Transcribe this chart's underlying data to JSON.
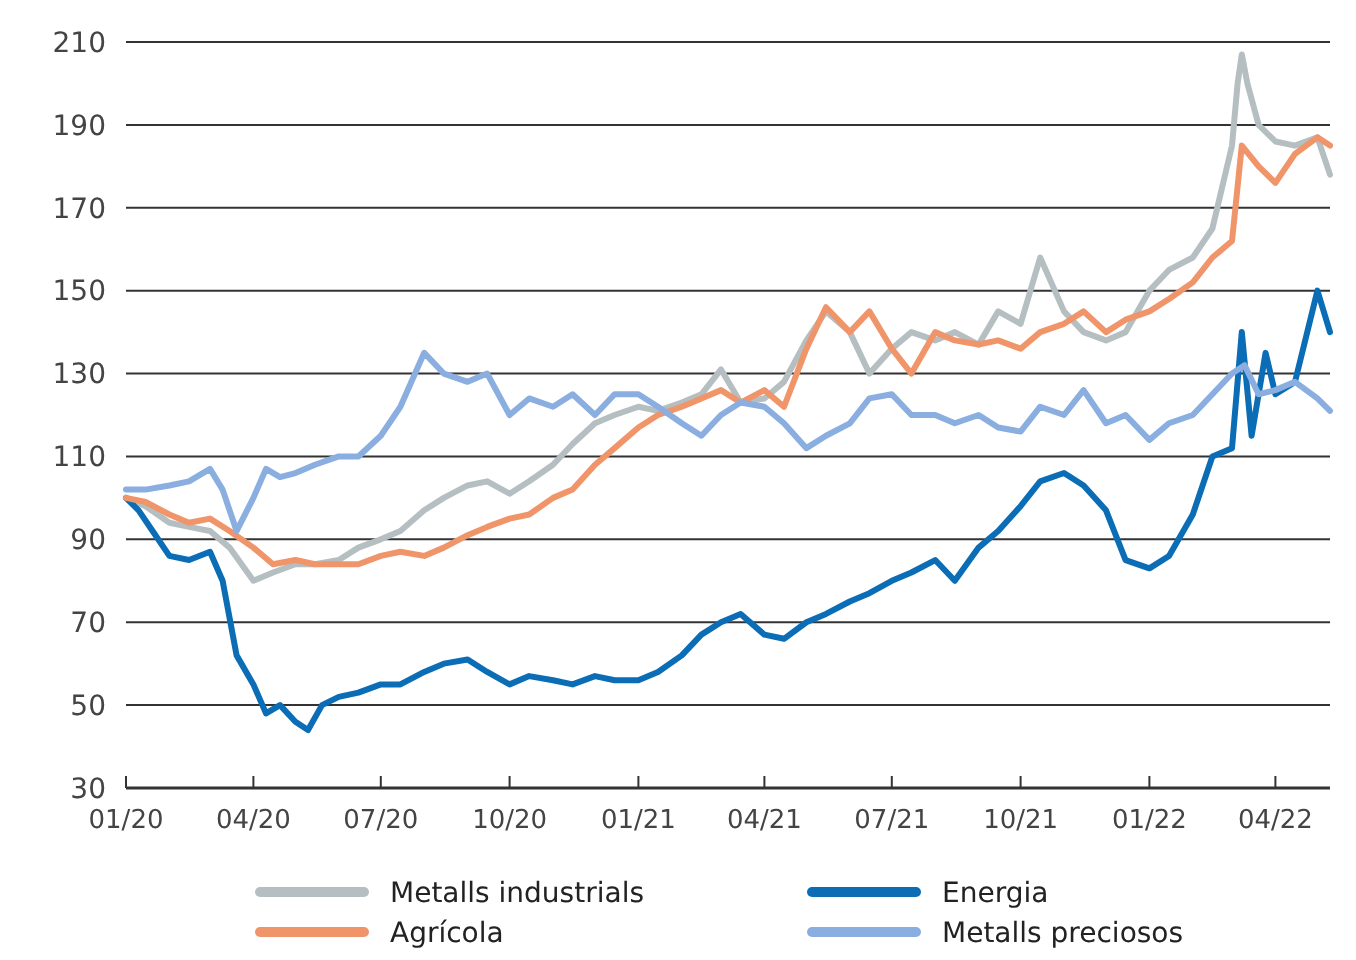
{
  "chart_data": {
    "type": "line",
    "ylim": [
      30,
      210
    ],
    "yticks": [
      30,
      50,
      70,
      90,
      110,
      130,
      150,
      170,
      190,
      210
    ],
    "xlim": [
      "2020-01-01",
      "2022-05-10"
    ],
    "xticks": [
      {
        "value": "2020-01-01",
        "label": "01/20"
      },
      {
        "value": "2020-04-01",
        "label": "04/20"
      },
      {
        "value": "2020-07-01",
        "label": "07/20"
      },
      {
        "value": "2020-10-01",
        "label": "10/20"
      },
      {
        "value": "2021-01-01",
        "label": "01/21"
      },
      {
        "value": "2021-04-01",
        "label": "04/21"
      },
      {
        "value": "2021-07-01",
        "label": "07/21"
      },
      {
        "value": "2021-10-01",
        "label": "10/21"
      },
      {
        "value": "2022-01-01",
        "label": "01/22"
      },
      {
        "value": "2022-04-01",
        "label": "04/22"
      }
    ],
    "grid": "y",
    "legend": "bottom",
    "marker": "none",
    "line_style": "solid",
    "series": [
      {
        "name": "Metalls industrials",
        "color": "#b5bfc2",
        "x": [
          "2020-01-01",
          "2020-01-15",
          "2020-02-01",
          "2020-02-15",
          "2020-03-01",
          "2020-03-15",
          "2020-04-01",
          "2020-04-15",
          "2020-05-01",
          "2020-05-15",
          "2020-06-01",
          "2020-06-15",
          "2020-07-01",
          "2020-07-15",
          "2020-08-01",
          "2020-08-15",
          "2020-09-01",
          "2020-09-15",
          "2020-10-01",
          "2020-10-15",
          "2020-11-01",
          "2020-11-15",
          "2020-12-01",
          "2020-12-15",
          "2021-01-01",
          "2021-01-15",
          "2021-02-01",
          "2021-02-15",
          "2021-03-01",
          "2021-03-15",
          "2021-04-01",
          "2021-04-15",
          "2021-05-01",
          "2021-05-15",
          "2021-06-01",
          "2021-06-15",
          "2021-07-01",
          "2021-07-15",
          "2021-08-01",
          "2021-08-15",
          "2021-09-01",
          "2021-09-15",
          "2021-10-01",
          "2021-10-15",
          "2021-11-01",
          "2021-11-15",
          "2021-12-01",
          "2021-12-15",
          "2022-01-01",
          "2022-01-15",
          "2022-02-01",
          "2022-02-15",
          "2022-03-01",
          "2022-03-05",
          "2022-03-08",
          "2022-03-12",
          "2022-03-20",
          "2022-04-01",
          "2022-04-15",
          "2022-05-01",
          "2022-05-10"
        ],
        "values": [
          100,
          98,
          94,
          93,
          92,
          88,
          80,
          82,
          84,
          84,
          85,
          88,
          90,
          92,
          97,
          100,
          103,
          104,
          101,
          104,
          108,
          113,
          118,
          120,
          122,
          121,
          123,
          125,
          131,
          123,
          124,
          128,
          138,
          145,
          140,
          130,
          136,
          140,
          138,
          140,
          137,
          145,
          142,
          158,
          145,
          140,
          138,
          140,
          150,
          155,
          158,
          165,
          185,
          200,
          207,
          200,
          190,
          186,
          185,
          187,
          178
        ]
      },
      {
        "name": "Energia",
        "color": "#0a6db5",
        "x": [
          "2020-01-01",
          "2020-01-10",
          "2020-01-20",
          "2020-02-01",
          "2020-02-15",
          "2020-03-01",
          "2020-03-10",
          "2020-03-20",
          "2020-04-01",
          "2020-04-10",
          "2020-04-20",
          "2020-05-01",
          "2020-05-10",
          "2020-05-20",
          "2020-06-01",
          "2020-06-15",
          "2020-07-01",
          "2020-07-15",
          "2020-08-01",
          "2020-08-15",
          "2020-09-01",
          "2020-09-15",
          "2020-10-01",
          "2020-10-15",
          "2020-11-01",
          "2020-11-15",
          "2020-12-01",
          "2020-12-15",
          "2021-01-01",
          "2021-01-15",
          "2021-02-01",
          "2021-02-15",
          "2021-03-01",
          "2021-03-15",
          "2021-04-01",
          "2021-04-15",
          "2021-05-01",
          "2021-05-15",
          "2021-06-01",
          "2021-06-15",
          "2021-07-01",
          "2021-07-15",
          "2021-08-01",
          "2021-08-15",
          "2021-09-01",
          "2021-09-15",
          "2021-10-01",
          "2021-10-15",
          "2021-11-01",
          "2021-11-15",
          "2021-12-01",
          "2021-12-15",
          "2022-01-01",
          "2022-01-15",
          "2022-02-01",
          "2022-02-15",
          "2022-03-01",
          "2022-03-08",
          "2022-03-15",
          "2022-03-25",
          "2022-04-01",
          "2022-04-15",
          "2022-05-01",
          "2022-05-10"
        ],
        "values": [
          100,
          97,
          92,
          86,
          85,
          87,
          80,
          62,
          55,
          48,
          50,
          46,
          44,
          50,
          52,
          53,
          55,
          55,
          58,
          60,
          61,
          58,
          55,
          57,
          56,
          55,
          57,
          56,
          56,
          58,
          62,
          67,
          70,
          72,
          67,
          66,
          70,
          72,
          75,
          77,
          80,
          82,
          85,
          80,
          88,
          92,
          98,
          104,
          106,
          103,
          97,
          85,
          83,
          86,
          96,
          110,
          112,
          140,
          115,
          135,
          125,
          128,
          150,
          140
        ]
      },
      {
        "name": "Agrícola",
        "color": "#f0956a",
        "x": [
          "2020-01-01",
          "2020-01-15",
          "2020-02-01",
          "2020-02-15",
          "2020-03-01",
          "2020-03-15",
          "2020-04-01",
          "2020-04-15",
          "2020-05-01",
          "2020-05-15",
          "2020-06-01",
          "2020-06-15",
          "2020-07-01",
          "2020-07-15",
          "2020-08-01",
          "2020-08-15",
          "2020-09-01",
          "2020-09-15",
          "2020-10-01",
          "2020-10-15",
          "2020-11-01",
          "2020-11-15",
          "2020-12-01",
          "2020-12-15",
          "2021-01-01",
          "2021-01-15",
          "2021-02-01",
          "2021-02-15",
          "2021-03-01",
          "2021-03-15",
          "2021-04-01",
          "2021-04-15",
          "2021-05-01",
          "2021-05-15",
          "2021-06-01",
          "2021-06-15",
          "2021-07-01",
          "2021-07-15",
          "2021-08-01",
          "2021-08-15",
          "2021-09-01",
          "2021-09-15",
          "2021-10-01",
          "2021-10-15",
          "2021-11-01",
          "2021-11-15",
          "2021-12-01",
          "2021-12-15",
          "2022-01-01",
          "2022-01-15",
          "2022-02-01",
          "2022-02-15",
          "2022-03-01",
          "2022-03-08",
          "2022-03-20",
          "2022-04-01",
          "2022-04-15",
          "2022-05-01",
          "2022-05-10"
        ],
        "values": [
          100,
          99,
          96,
          94,
          95,
          92,
          88,
          84,
          85,
          84,
          84,
          84,
          86,
          87,
          86,
          88,
          91,
          93,
          95,
          96,
          100,
          102,
          108,
          112,
          117,
          120,
          122,
          124,
          126,
          123,
          126,
          122,
          136,
          146,
          140,
          145,
          136,
          130,
          140,
          138,
          137,
          138,
          136,
          140,
          142,
          145,
          140,
          143,
          145,
          148,
          152,
          158,
          162,
          185,
          180,
          176,
          183,
          187,
          185
        ]
      },
      {
        "name": "Metalls preciosos",
        "color": "#8aaee0",
        "x": [
          "2020-01-01",
          "2020-01-15",
          "2020-02-01",
          "2020-02-15",
          "2020-03-01",
          "2020-03-10",
          "2020-03-20",
          "2020-04-01",
          "2020-04-10",
          "2020-04-20",
          "2020-05-01",
          "2020-05-15",
          "2020-06-01",
          "2020-06-15",
          "2020-07-01",
          "2020-07-15",
          "2020-08-01",
          "2020-08-15",
          "2020-09-01",
          "2020-09-15",
          "2020-10-01",
          "2020-10-15",
          "2020-11-01",
          "2020-11-15",
          "2020-12-01",
          "2020-12-15",
          "2021-01-01",
          "2021-01-15",
          "2021-02-01",
          "2021-02-15",
          "2021-03-01",
          "2021-03-15",
          "2021-04-01",
          "2021-04-15",
          "2021-05-01",
          "2021-05-15",
          "2021-06-01",
          "2021-06-15",
          "2021-07-01",
          "2021-07-15",
          "2021-08-01",
          "2021-08-15",
          "2021-09-01",
          "2021-09-15",
          "2021-10-01",
          "2021-10-15",
          "2021-11-01",
          "2021-11-15",
          "2021-12-01",
          "2021-12-15",
          "2022-01-01",
          "2022-01-15",
          "2022-02-01",
          "2022-02-15",
          "2022-03-01",
          "2022-03-10",
          "2022-03-20",
          "2022-04-01",
          "2022-04-15",
          "2022-05-01",
          "2022-05-10"
        ],
        "values": [
          102,
          102,
          103,
          104,
          107,
          102,
          92,
          100,
          107,
          105,
          106,
          108,
          110,
          110,
          115,
          122,
          135,
          130,
          128,
          130,
          120,
          124,
          122,
          125,
          120,
          125,
          125,
          122,
          118,
          115,
          120,
          123,
          122,
          118,
          112,
          115,
          118,
          124,
          125,
          120,
          120,
          118,
          120,
          117,
          116,
          122,
          120,
          126,
          118,
          120,
          114,
          118,
          120,
          125,
          130,
          132,
          125,
          126,
          128,
          124,
          121
        ]
      }
    ]
  }
}
